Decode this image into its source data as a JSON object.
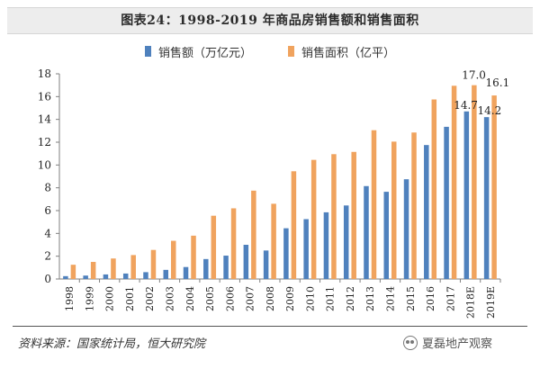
{
  "title": "图表24：1998-2019 年商品房销售额和销售面积",
  "source": "资料来源：国家统计局，恒大研究院",
  "brand": {
    "label": "夏磊地产观察",
    "icon": "wechat-icon"
  },
  "colors": {
    "series1": "#4f81bd",
    "series2": "#f0a35e",
    "axis": "#7f7f7f"
  },
  "chart_data": {
    "type": "bar",
    "categories": [
      "1998",
      "1999",
      "2000",
      "2001",
      "2002",
      "2003",
      "2004",
      "2005",
      "2006",
      "2007",
      "2008",
      "2009",
      "2010",
      "2011",
      "2012",
      "2013",
      "2014",
      "2015",
      "2016",
      "2017",
      "2018E",
      "2019E"
    ],
    "series": [
      {
        "name": "销售额（万亿元）",
        "color": "#4f81bd",
        "values": [
          0.25,
          0.3,
          0.4,
          0.48,
          0.6,
          0.8,
          1.05,
          1.75,
          2.05,
          3.0,
          2.5,
          4.45,
          5.25,
          5.85,
          6.45,
          8.15,
          7.65,
          8.75,
          11.75,
          13.35,
          14.7,
          14.2
        ]
      },
      {
        "name": "销售面积（亿平）",
        "color": "#f0a35e",
        "values": [
          1.25,
          1.5,
          1.8,
          2.1,
          2.55,
          3.35,
          3.8,
          5.55,
          6.2,
          7.75,
          6.6,
          9.45,
          10.45,
          10.95,
          11.15,
          13.05,
          12.05,
          12.85,
          15.75,
          16.95,
          17.0,
          16.1
        ]
      }
    ],
    "data_labels": [
      {
        "category": "2018E",
        "series": 0,
        "text": "14.7"
      },
      {
        "category": "2018E",
        "series": 1,
        "text": "17.0"
      },
      {
        "category": "2019E",
        "series": 0,
        "text": "14.2"
      },
      {
        "category": "2019E",
        "series": 1,
        "text": "16.1"
      }
    ],
    "ylim": [
      0,
      18
    ],
    "yticks": [
      0,
      2,
      4,
      6,
      8,
      10,
      12,
      14,
      16,
      18
    ],
    "xlabel": "",
    "ylabel": "",
    "legend_position": "top-center",
    "grid": false
  }
}
